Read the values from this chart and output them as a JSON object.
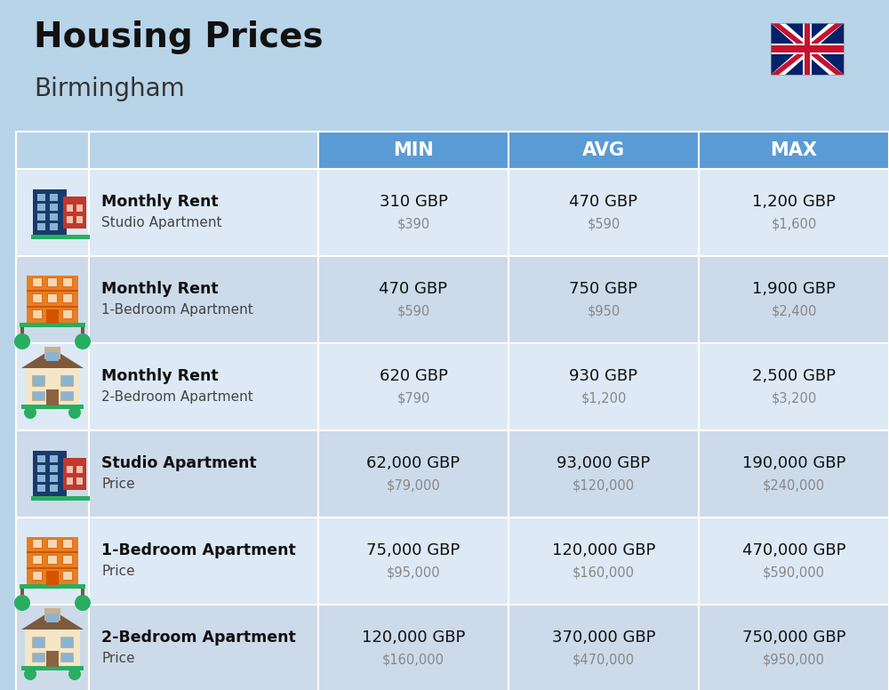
{
  "title": "Housing Prices",
  "subtitle": "Birmingham",
  "background_color": "#b8d4e8",
  "header_bg_color": "#5b9bd5",
  "header_text_color": "#ffffff",
  "row_bg_light": "#dde9f5",
  "row_bg_dark": "#ccdaea",
  "col_header_labels": [
    "MIN",
    "AVG",
    "MAX"
  ],
  "rows": [
    {
      "bold_label": "Monthly Rent",
      "sub_label": "Studio Apartment",
      "min_gbp": "310 GBP",
      "min_usd": "$390",
      "avg_gbp": "470 GBP",
      "avg_usd": "$590",
      "max_gbp": "1,200 GBP",
      "max_usd": "$1,600",
      "icon_type": "blue_red_tower"
    },
    {
      "bold_label": "Monthly Rent",
      "sub_label": "1-Bedroom Apartment",
      "min_gbp": "470 GBP",
      "min_usd": "$590",
      "avg_gbp": "750 GBP",
      "avg_usd": "$950",
      "max_gbp": "1,900 GBP",
      "max_usd": "$2,400",
      "icon_type": "orange_apartment"
    },
    {
      "bold_label": "Monthly Rent",
      "sub_label": "2-Bedroom Apartment",
      "min_gbp": "620 GBP",
      "min_usd": "$790",
      "avg_gbp": "930 GBP",
      "avg_usd": "$1,200",
      "max_gbp": "2,500 GBP",
      "max_usd": "$3,200",
      "icon_type": "tan_house"
    },
    {
      "bold_label": "Studio Apartment",
      "sub_label": "Price",
      "min_gbp": "62,000 GBP",
      "min_usd": "$79,000",
      "avg_gbp": "93,000 GBP",
      "avg_usd": "$120,000",
      "max_gbp": "190,000 GBP",
      "max_usd": "$240,000",
      "icon_type": "blue_red_tower"
    },
    {
      "bold_label": "1-Bedroom Apartment",
      "sub_label": "Price",
      "min_gbp": "75,000 GBP",
      "min_usd": "$95,000",
      "avg_gbp": "120,000 GBP",
      "avg_usd": "$160,000",
      "max_gbp": "470,000 GBP",
      "max_usd": "$590,000",
      "icon_type": "orange_apartment"
    },
    {
      "bold_label": "2-Bedroom Apartment",
      "sub_label": "Price",
      "min_gbp": "120,000 GBP",
      "min_usd": "$160,000",
      "avg_gbp": "370,000 GBP",
      "avg_usd": "$470,000",
      "max_gbp": "750,000 GBP",
      "max_usd": "$950,000",
      "icon_type": "tan_house"
    }
  ]
}
